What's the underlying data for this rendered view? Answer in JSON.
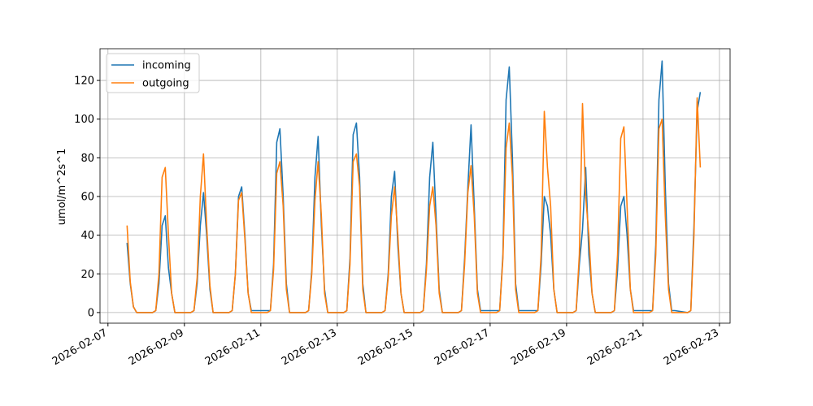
{
  "chart_data": {
    "type": "line",
    "ylabel": "umol/m^2s^1",
    "xlim": [
      "2026-02-06T19:00",
      "2026-02-23T06:40"
    ],
    "xticks": [
      "2026-02-07",
      "2026-02-09",
      "2026-02-11",
      "2026-02-13",
      "2026-02-15",
      "2026-02-17",
      "2026-02-19",
      "2026-02-21",
      "2026-02-23"
    ],
    "ylim": [
      -5.5,
      136.4
    ],
    "yticks": [
      0,
      20,
      40,
      60,
      80,
      100,
      120
    ],
    "grid": true,
    "legend": "upper left",
    "x": [
      "2026-02-07T12:00",
      "2026-02-07T14:00",
      "2026-02-07T16:00",
      "2026-02-07T18:00",
      "2026-02-07T20:00",
      "2026-02-08T04:00",
      "2026-02-08T06:00",
      "2026-02-08T08:00",
      "2026-02-08T10:00",
      "2026-02-08T12:00",
      "2026-02-08T14:00",
      "2026-02-08T16:00",
      "2026-02-08T18:00",
      "2026-02-08T20:00",
      "2026-02-09T04:00",
      "2026-02-09T06:00",
      "2026-02-09T08:00",
      "2026-02-09T10:00",
      "2026-02-09T12:00",
      "2026-02-09T14:00",
      "2026-02-09T16:00",
      "2026-02-09T18:00",
      "2026-02-09T20:00",
      "2026-02-10T04:00",
      "2026-02-10T06:00",
      "2026-02-10T08:00",
      "2026-02-10T10:00",
      "2026-02-10T12:00",
      "2026-02-10T14:00",
      "2026-02-10T16:00",
      "2026-02-10T18:00",
      "2026-02-10T20:00",
      "2026-02-11T04:00",
      "2026-02-11T06:00",
      "2026-02-11T08:00",
      "2026-02-11T10:00",
      "2026-02-11T12:00",
      "2026-02-11T14:00",
      "2026-02-11T16:00",
      "2026-02-11T18:00",
      "2026-02-11T20:00",
      "2026-02-12T04:00",
      "2026-02-12T06:00",
      "2026-02-12T08:00",
      "2026-02-12T10:00",
      "2026-02-12T12:00",
      "2026-02-12T14:00",
      "2026-02-12T16:00",
      "2026-02-12T18:00",
      "2026-02-12T20:00",
      "2026-02-13T04:00",
      "2026-02-13T06:00",
      "2026-02-13T08:00",
      "2026-02-13T10:00",
      "2026-02-13T12:00",
      "2026-02-13T14:00",
      "2026-02-13T16:00",
      "2026-02-13T18:00",
      "2026-02-13T20:00",
      "2026-02-14T04:00",
      "2026-02-14T06:00",
      "2026-02-14T08:00",
      "2026-02-14T10:00",
      "2026-02-14T12:00",
      "2026-02-14T14:00",
      "2026-02-14T16:00",
      "2026-02-14T18:00",
      "2026-02-14T20:00",
      "2026-02-15T04:00",
      "2026-02-15T06:00",
      "2026-02-15T08:00",
      "2026-02-15T10:00",
      "2026-02-15T12:00",
      "2026-02-15T14:00",
      "2026-02-15T16:00",
      "2026-02-15T18:00",
      "2026-02-15T20:00",
      "2026-02-16T04:00",
      "2026-02-16T06:00",
      "2026-02-16T08:00",
      "2026-02-16T10:00",
      "2026-02-16T12:00",
      "2026-02-16T14:00",
      "2026-02-16T16:00",
      "2026-02-16T18:00",
      "2026-02-16T20:00",
      "2026-02-17T04:00",
      "2026-02-17T06:00",
      "2026-02-17T08:00",
      "2026-02-17T10:00",
      "2026-02-17T12:00",
      "2026-02-17T14:00",
      "2026-02-17T16:00",
      "2026-02-17T18:00",
      "2026-02-17T20:00",
      "2026-02-18T04:00",
      "2026-02-18T06:00",
      "2026-02-18T08:00",
      "2026-02-18T10:00",
      "2026-02-18T12:00",
      "2026-02-18T14:00",
      "2026-02-18T16:00",
      "2026-02-18T18:00",
      "2026-02-18T20:00",
      "2026-02-19T04:00",
      "2026-02-19T06:00",
      "2026-02-19T08:00",
      "2026-02-19T10:00",
      "2026-02-19T12:00",
      "2026-02-19T14:00",
      "2026-02-19T16:00",
      "2026-02-19T18:00",
      "2026-02-19T20:00",
      "2026-02-20T04:00",
      "2026-02-20T06:00",
      "2026-02-20T08:00",
      "2026-02-20T10:00",
      "2026-02-20T12:00",
      "2026-02-20T14:00",
      "2026-02-20T16:00",
      "2026-02-20T18:00",
      "2026-02-20T20:00",
      "2026-02-21T04:00",
      "2026-02-21T06:00",
      "2026-02-21T08:00",
      "2026-02-21T10:00",
      "2026-02-21T12:00",
      "2026-02-21T14:00",
      "2026-02-21T16:00",
      "2026-02-21T18:00",
      "2026-02-21T20:00",
      "2026-02-22T04:00",
      "2026-02-22T06:00",
      "2026-02-22T08:00",
      "2026-02-22T10:00",
      "2026-02-22T12:00"
    ],
    "series": [
      {
        "name": "incoming",
        "color": "#1f77b4",
        "values": [
          36,
          15,
          3,
          0,
          0,
          0,
          1,
          15,
          45,
          50,
          23,
          10,
          0,
          0,
          0,
          1,
          15,
          45,
          62,
          40,
          12,
          0,
          0,
          0,
          1,
          20,
          60,
          65,
          40,
          10,
          1,
          1,
          1,
          1,
          25,
          88,
          95,
          60,
          15,
          0,
          0,
          0,
          1,
          22,
          70,
          91,
          45,
          12,
          0,
          0,
          0,
          1,
          28,
          92,
          98,
          70,
          15,
          0,
          0,
          0,
          1,
          20,
          60,
          73,
          35,
          10,
          0,
          0,
          0,
          1,
          25,
          70,
          88,
          50,
          12,
          0,
          0,
          0,
          1,
          28,
          65,
          97,
          55,
          12,
          1,
          1,
          1,
          1,
          30,
          110,
          127,
          80,
          15,
          1,
          1,
          1,
          1,
          25,
          60,
          55,
          40,
          12,
          0,
          0,
          0,
          1,
          25,
          43,
          75,
          30,
          10,
          0,
          0,
          0,
          1,
          22,
          55,
          60,
          40,
          12,
          1,
          1,
          1,
          1,
          35,
          110,
          130,
          65,
          15,
          1,
          1,
          0,
          1,
          45,
          104,
          114
        ]
      },
      {
        "name": "outgoing",
        "color": "#ff7f0e",
        "values": [
          45,
          16,
          3,
          0,
          0,
          0,
          1,
          20,
          70,
          75,
          40,
          10,
          0,
          0,
          0,
          1,
          18,
          60,
          82,
          45,
          14,
          0,
          0,
          0,
          1,
          20,
          58,
          62,
          38,
          10,
          0,
          0,
          0,
          1,
          22,
          72,
          78,
          55,
          12,
          0,
          0,
          0,
          1,
          20,
          58,
          78,
          50,
          10,
          0,
          0,
          0,
          1,
          25,
          78,
          82,
          65,
          12,
          0,
          0,
          0,
          1,
          18,
          50,
          65,
          40,
          10,
          0,
          0,
          0,
          1,
          22,
          55,
          65,
          45,
          10,
          0,
          0,
          0,
          1,
          25,
          62,
          76,
          50,
          10,
          0,
          0,
          0,
          1,
          28,
          85,
          98,
          70,
          12,
          0,
          0,
          0,
          1,
          30,
          104,
          75,
          55,
          12,
          0,
          0,
          0,
          1,
          30,
          108,
          60,
          40,
          10,
          0,
          0,
          0,
          1,
          30,
          90,
          96,
          55,
          12,
          0,
          0,
          0,
          1,
          30,
          95,
          100,
          50,
          12,
          0,
          0,
          0,
          1,
          40,
          111,
          75
        ]
      }
    ]
  }
}
